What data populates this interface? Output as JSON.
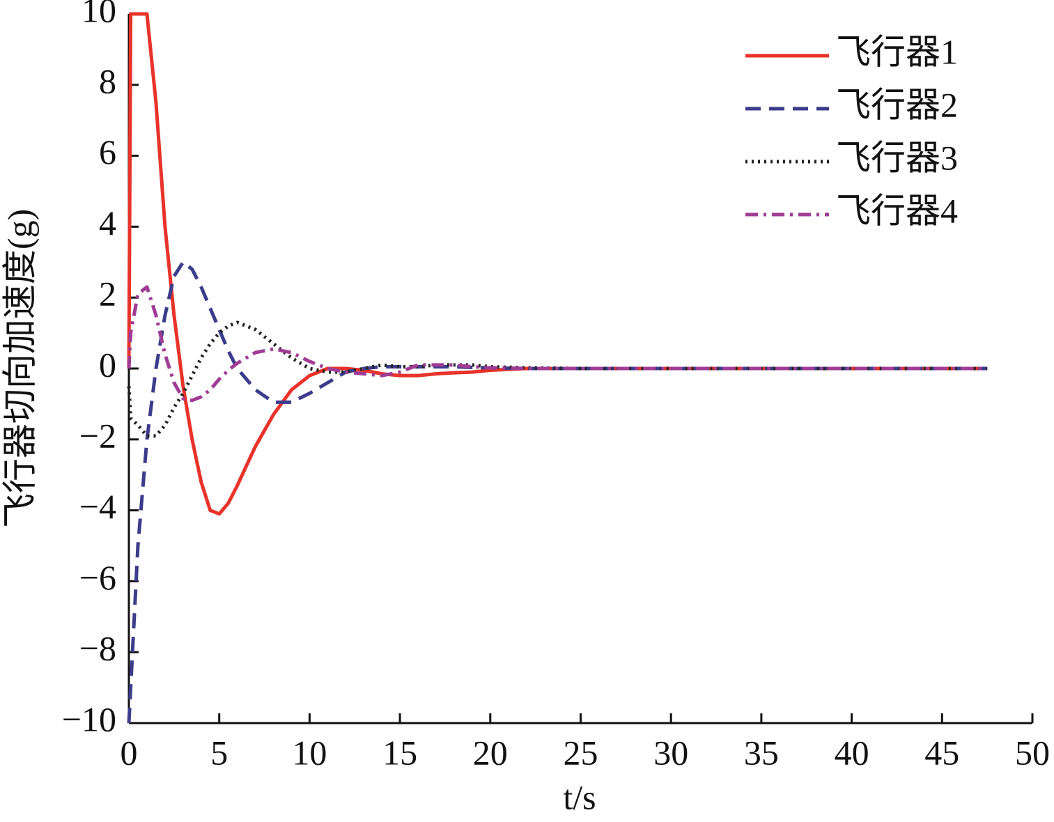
{
  "chart_data": {
    "type": "line",
    "xlabel": "t/s",
    "ylabel": "飞行器切向加速度(g)",
    "x": [
      0,
      0.1,
      0.5,
      1,
      1.5,
      2,
      2.5,
      3,
      3.5,
      4,
      4.5,
      5,
      5.5,
      6,
      7,
      8,
      9,
      10,
      11,
      12,
      13,
      14,
      15,
      16,
      17,
      18,
      19,
      20,
      22,
      25,
      30,
      35,
      40,
      47.5
    ],
    "series": [
      {
        "name": "飞行器1",
        "color": "#e8332a",
        "line_style": "solid",
        "values": [
          0,
          10,
          10,
          10,
          7.5,
          4,
          1.5,
          -0.5,
          -2,
          -3.2,
          -4,
          -4.1,
          -3.8,
          -3.3,
          -2.2,
          -1.3,
          -0.6,
          -0.2,
          0,
          0,
          -0.05,
          -0.15,
          -0.2,
          -0.2,
          -0.15,
          -0.12,
          -0.1,
          -0.05,
          0,
          0,
          0,
          0,
          0,
          0
        ]
      },
      {
        "name": "飞行器2",
        "color": "#3c3c8c",
        "line_style": "dashed",
        "values": [
          -10,
          -9,
          -5,
          -2,
          0,
          1.5,
          2.6,
          3,
          2.8,
          2.3,
          1.7,
          1.1,
          0.5,
          0,
          -0.6,
          -0.95,
          -0.95,
          -0.7,
          -0.4,
          -0.1,
          0,
          0.05,
          0.05,
          0.05,
          0.05,
          0.05,
          0.03,
          0.02,
          0,
          0,
          0,
          0,
          0,
          0
        ]
      },
      {
        "name": "飞行器3",
        "color": "#222222",
        "line_style": "dotted",
        "values": [
          -0.5,
          -1.4,
          -1.6,
          -1.9,
          -1.9,
          -1.6,
          -1.1,
          -0.7,
          -0.2,
          0.3,
          0.7,
          1,
          1.2,
          1.3,
          1.1,
          0.7,
          0.3,
          0,
          -0.1,
          -0.1,
          0,
          0.1,
          0.05,
          0.05,
          0.1,
          0.1,
          0.1,
          0.05,
          0.02,
          0,
          0,
          0,
          0,
          0
        ]
      },
      {
        "name": "飞行器4",
        "color": "#a03c96",
        "line_style": "dashdot",
        "values": [
          0,
          1,
          2.1,
          2.3,
          1.5,
          0.4,
          -0.4,
          -0.85,
          -0.9,
          -0.8,
          -0.6,
          -0.3,
          -0.05,
          0.15,
          0.45,
          0.55,
          0.45,
          0.2,
          0,
          -0.1,
          -0.15,
          -0.2,
          -0.1,
          0.1,
          0.1,
          0.1,
          0.05,
          0.02,
          0,
          0,
          0,
          0,
          0,
          0
        ]
      }
    ],
    "xlim": [
      0,
      50
    ],
    "xticks": [
      0,
      5,
      10,
      15,
      20,
      25,
      30,
      35,
      40,
      45,
      50
    ],
    "ylim": [
      -10,
      10
    ],
    "yticks": [
      {
        "value": -10,
        "label": "−10"
      },
      {
        "value": -8,
        "label": "−8"
      },
      {
        "value": -6,
        "label": "−6"
      },
      {
        "value": -4,
        "label": "−4"
      },
      {
        "value": -2,
        "label": "−2"
      },
      0,
      2,
      4,
      6,
      8,
      10
    ],
    "legend": "upper right",
    "grid": false
  }
}
